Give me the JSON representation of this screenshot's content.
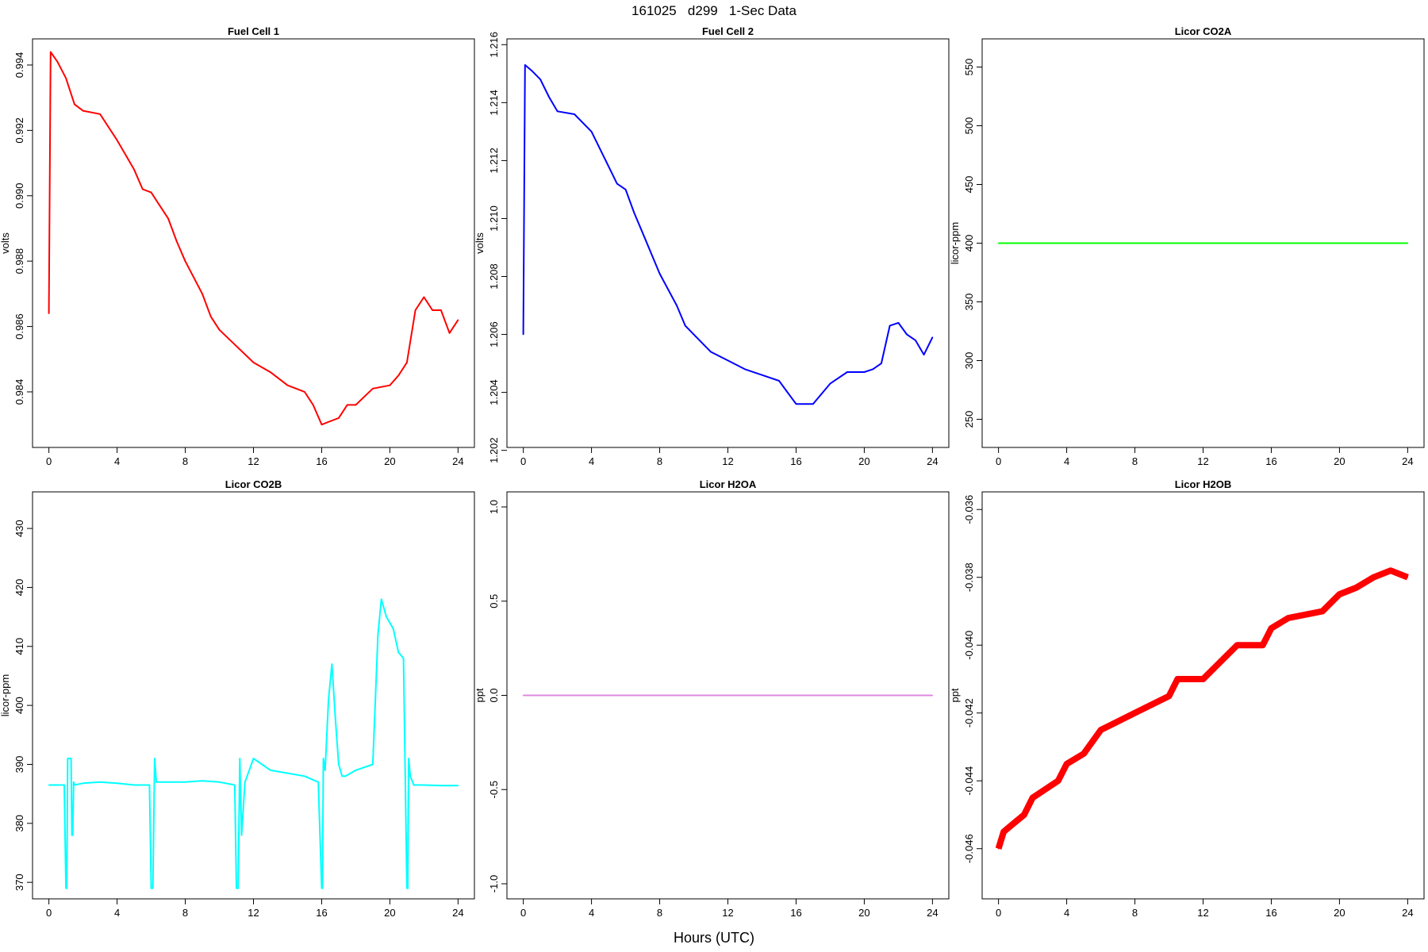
{
  "figure": {
    "title": "161025   d299   1-Sec Data",
    "xlabel": "Hours (UTC)"
  },
  "chart_data": [
    {
      "type": "line",
      "title": "Fuel Cell 1",
      "xlabel": "",
      "ylabel": "volts",
      "color": "#ff0000",
      "xlim": [
        -0.96,
        24.96
      ],
      "ylim": [
        0.9823,
        0.9948
      ],
      "xticks": [
        0,
        4,
        8,
        12,
        16,
        20,
        24
      ],
      "yticks": [
        0.984,
        0.986,
        0.988,
        0.99,
        0.992,
        0.994
      ],
      "ytick_labels": [
        "0.984",
        "0.986",
        "0.988",
        "0.990",
        "0.992",
        "0.994"
      ],
      "series": [
        {
          "x": [
            0,
            0.1,
            0.5,
            1,
            1.5,
            2,
            3,
            4,
            5,
            5.5,
            6,
            6.5,
            7,
            7.5,
            8,
            9,
            9.5,
            10,
            11,
            12,
            13,
            14,
            15,
            15.5,
            16,
            16.5,
            17,
            17.5,
            18,
            19,
            20,
            20.5,
            21,
            21.5,
            22,
            22.5,
            23,
            23.5,
            24
          ],
          "y": [
            0.9864,
            0.9944,
            0.9941,
            0.9936,
            0.9928,
            0.9926,
            0.9925,
            0.9917,
            0.9908,
            0.9902,
            0.9901,
            0.9897,
            0.9893,
            0.9886,
            0.988,
            0.987,
            0.9863,
            0.9859,
            0.9854,
            0.9849,
            0.9846,
            0.9842,
            0.984,
            0.9836,
            0.983,
            0.9831,
            0.9832,
            0.9836,
            0.9836,
            0.9841,
            0.9842,
            0.9845,
            0.9849,
            0.9865,
            0.9869,
            0.9865,
            0.9865,
            0.9858,
            0.9862
          ]
        }
      ]
    },
    {
      "type": "line",
      "title": "Fuel Cell 2",
      "xlabel": "",
      "ylabel": "volts",
      "color": "#0000ff",
      "xlim": [
        -0.96,
        24.96
      ],
      "ylim": [
        1.2021,
        1.2162
      ],
      "xticks": [
        0,
        4,
        8,
        12,
        16,
        20,
        24
      ],
      "yticks": [
        1.202,
        1.204,
        1.206,
        1.208,
        1.21,
        1.212,
        1.214,
        1.216
      ],
      "ytick_labels": [
        "1.202",
        "1.204",
        "1.206",
        "1.208",
        "1.210",
        "1.212",
        "1.214",
        "1.216"
      ],
      "series": [
        {
          "x": [
            0,
            0.1,
            0.5,
            1,
            1.5,
            2,
            3,
            4,
            5,
            5.5,
            6,
            6.5,
            7,
            8,
            9,
            9.5,
            10,
            11,
            12,
            13,
            14,
            15,
            15.5,
            16,
            17,
            18,
            19,
            20,
            20.5,
            21,
            21.5,
            22,
            22.5,
            23,
            23.5,
            24
          ],
          "y": [
            1.206,
            1.2153,
            1.2151,
            1.2148,
            1.2142,
            1.2137,
            1.2136,
            1.213,
            1.2118,
            1.2112,
            1.211,
            1.2102,
            1.2095,
            1.2081,
            1.207,
            1.2063,
            1.206,
            1.2054,
            1.2051,
            1.2048,
            1.2046,
            1.2044,
            1.204,
            1.2036,
            1.2036,
            1.2043,
            1.2047,
            1.2047,
            1.2048,
            1.205,
            1.2063,
            1.2064,
            1.206,
            1.2058,
            1.2053,
            1.2059
          ]
        }
      ]
    },
    {
      "type": "line",
      "title": "Licor CO2A",
      "xlabel": "",
      "ylabel": "licor-ppm",
      "color": "#00ff00",
      "xlim": [
        -0.96,
        24.96
      ],
      "ylim": [
        226,
        574
      ],
      "xticks": [
        0,
        4,
        8,
        12,
        16,
        20,
        24
      ],
      "yticks": [
        250,
        300,
        350,
        400,
        450,
        500,
        550
      ],
      "ytick_labels": [
        "250",
        "300",
        "350",
        "400",
        "450",
        "500",
        "550"
      ],
      "series": [
        {
          "x": [
            0,
            24
          ],
          "y": [
            400,
            400
          ]
        }
      ]
    },
    {
      "type": "line",
      "title": "Licor CO2B",
      "xlabel": "",
      "ylabel": "licor-ppm",
      "color": "#00ffff",
      "xlim": [
        -0.96,
        24.96
      ],
      "ylim": [
        367.2,
        436.2
      ],
      "xticks": [
        0,
        4,
        8,
        12,
        16,
        20,
        24
      ],
      "yticks": [
        370,
        380,
        390,
        400,
        410,
        420,
        430
      ],
      "ytick_labels": [
        "370",
        "380",
        "390",
        "400",
        "410",
        "420",
        "430"
      ],
      "series": [
        {
          "x": [
            0,
            0.9,
            1.0,
            1.05,
            1.1,
            1.2,
            1.3,
            1.35,
            1.4,
            1.45,
            1.5,
            2,
            3,
            4,
            5,
            5.9,
            6.0,
            6.1,
            6.2,
            6.3,
            7,
            8,
            9,
            10,
            10.9,
            11.0,
            11.1,
            11.2,
            11.3,
            11.5,
            12,
            12.5,
            13,
            14,
            15,
            15.8,
            16.0,
            16.05,
            16.1,
            16.2,
            16.4,
            16.6,
            16.8,
            17,
            17.2,
            17.4,
            18,
            19,
            19.3,
            19.5,
            19.8,
            20.2,
            20.5,
            20.8,
            21.0,
            21.05,
            21.1,
            21.2,
            21.4,
            22,
            23,
            24
          ],
          "y": [
            386.5,
            386.5,
            369,
            369,
            391,
            391,
            391,
            378,
            378,
            387,
            386.5,
            386.8,
            387.0,
            386.8,
            386.5,
            386.5,
            369,
            369,
            391,
            387,
            387.0,
            387.0,
            387.2,
            387.0,
            386.5,
            369,
            369,
            391,
            378,
            387,
            391,
            390,
            389,
            388.5,
            388,
            387,
            369,
            369,
            391,
            389,
            401,
            407,
            398,
            390,
            388,
            388,
            389,
            390,
            412,
            418,
            415,
            413,
            409,
            408,
            369,
            369,
            391,
            388,
            386.5,
            386.5,
            386.4,
            386.4
          ]
        }
      ]
    },
    {
      "type": "line",
      "title": "Licor H2OA",
      "xlabel": "",
      "ylabel": "ppt",
      "color": "#dd88dd",
      "xlim": [
        -0.96,
        24.96
      ],
      "ylim": [
        -1.08,
        1.08
      ],
      "xticks": [
        0,
        4,
        8,
        12,
        16,
        20,
        24
      ],
      "yticks": [
        -1.0,
        -0.5,
        0.0,
        0.5,
        1.0
      ],
      "ytick_labels": [
        "-1.0",
        "-0.5",
        "0.0",
        "0.5",
        "1.0"
      ],
      "series": [
        {
          "x": [
            0,
            24
          ],
          "y": [
            0,
            0
          ]
        }
      ]
    },
    {
      "type": "line",
      "title": "Licor H2OB",
      "xlabel": "",
      "ylabel": "ppt",
      "color": "#ff0000",
      "xlim": [
        -0.96,
        24.96
      ],
      "ylim": [
        -0.04748,
        -0.03548
      ],
      "xticks": [
        0,
        4,
        8,
        12,
        16,
        20,
        24
      ],
      "yticks": [
        -0.046,
        -0.044,
        -0.042,
        -0.04,
        -0.038,
        -0.036
      ],
      "ytick_labels": [
        "-0.046",
        "-0.044",
        "-0.042",
        "-0.040",
        "-0.038",
        "-0.036"
      ],
      "series": [
        {
          "x": [
            0,
            0.3,
            1.5,
            2,
            3.5,
            4,
            5,
            6,
            8,
            10,
            10.5,
            12,
            13,
            14,
            15.5,
            16,
            17,
            19,
            20,
            21,
            22,
            23,
            24
          ],
          "y": [
            -0.046,
            -0.0455,
            -0.045,
            -0.0445,
            -0.044,
            -0.0435,
            -0.0432,
            -0.0425,
            -0.042,
            -0.0415,
            -0.041,
            -0.041,
            -0.0405,
            -0.04,
            -0.04,
            -0.0395,
            -0.0392,
            -0.039,
            -0.0385,
            -0.0383,
            -0.038,
            -0.0378,
            -0.038
          ]
        }
      ]
    }
  ]
}
